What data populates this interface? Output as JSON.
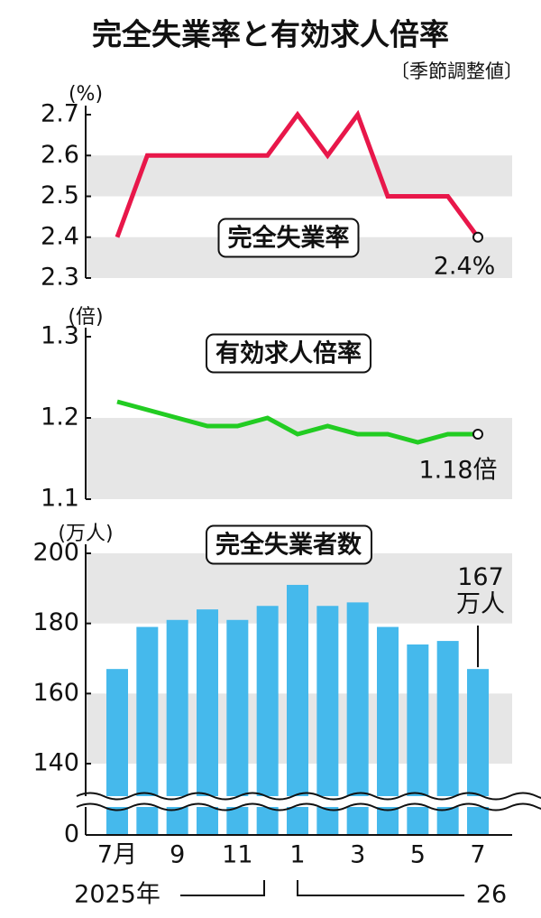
{
  "title": "完全失業率と有効求人倍率",
  "subtitle": "〔季節調整値〕",
  "chart_data": [
    {
      "type": "line",
      "title": "完全失業率",
      "y_unit": "(%)",
      "color": "#e8174a",
      "values": [
        2.4,
        2.6,
        2.6,
        2.6,
        2.6,
        2.6,
        2.7,
        2.6,
        2.7,
        2.5,
        2.5,
        2.5,
        2.4
      ],
      "value_labels": [
        null,
        null,
        null,
        null,
        null,
        null,
        null,
        null,
        null,
        null,
        null,
        null,
        "2.4%"
      ],
      "ylim": [
        2.3,
        2.7
      ],
      "yticks": [
        2.3,
        2.4,
        2.5,
        2.6,
        2.7
      ],
      "grid": "bands"
    },
    {
      "type": "line",
      "title": "有効求人倍率",
      "y_unit": "(倍)",
      "color": "#22cc22",
      "values": [
        1.22,
        1.21,
        1.2,
        1.19,
        1.19,
        1.2,
        1.18,
        1.19,
        1.18,
        1.18,
        1.17,
        1.18,
        1.18
      ],
      "value_labels": [
        null,
        null,
        null,
        null,
        null,
        null,
        null,
        null,
        null,
        null,
        null,
        null,
        "1.18倍"
      ],
      "ylim": [
        1.1,
        1.3
      ],
      "yticks": [
        1.1,
        1.2,
        1.3
      ],
      "grid": "bands"
    },
    {
      "type": "bar",
      "title": "完全失業者数",
      "y_unit": "(万人)",
      "color": "#45b9ec",
      "categories": [
        "7月",
        null,
        "9",
        null,
        "11",
        null,
        "1",
        null,
        "3",
        null,
        "5",
        null,
        "7"
      ],
      "year_labels": [
        "2025年",
        "26"
      ],
      "values": [
        167,
        179,
        181,
        184,
        181,
        185,
        191,
        185,
        186,
        179,
        174,
        175,
        167
      ],
      "value_labels": [
        null,
        null,
        null,
        null,
        null,
        null,
        null,
        null,
        null,
        null,
        null,
        null,
        "167\n万人"
      ],
      "ylim": [
        0,
        200
      ],
      "yticks": [
        0,
        140,
        160,
        180,
        200
      ],
      "axis_break": true,
      "grid": "bands"
    }
  ]
}
